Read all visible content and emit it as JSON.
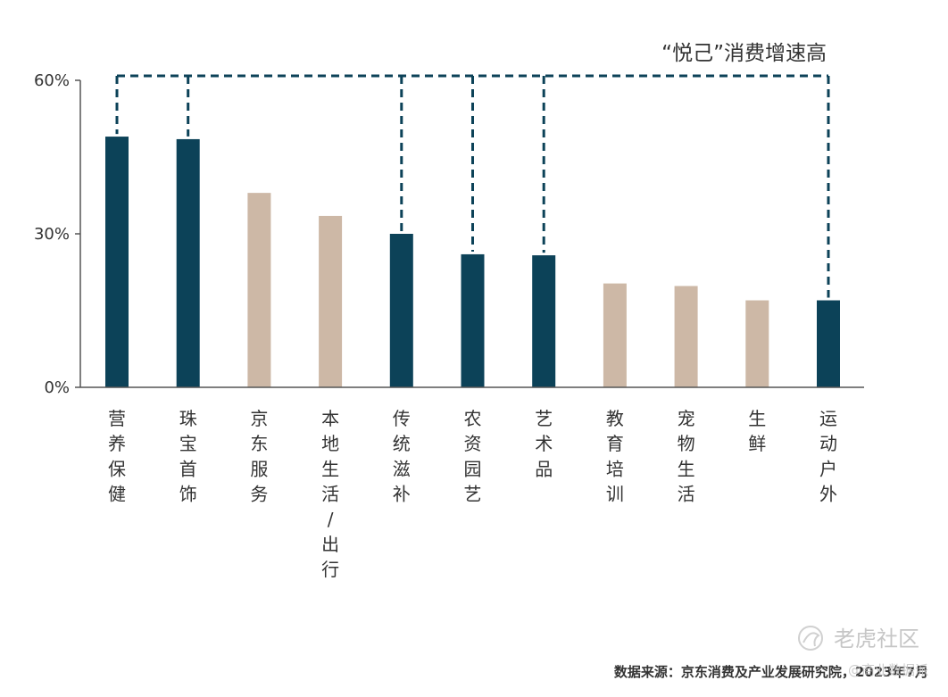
{
  "chart_data": {
    "type": "bar",
    "categories": [
      "营养保健",
      "珠宝首饰",
      "京东服务",
      "本地生活/出行",
      "传统滋补",
      "农资园艺",
      "艺术品",
      "教育培训",
      "宠物生活",
      "生鲜",
      "运动户外"
    ],
    "values": [
      49,
      48.5,
      38,
      33.5,
      30,
      26,
      25.8,
      20.3,
      19.8,
      17,
      17
    ],
    "highlighted": [
      true,
      true,
      false,
      false,
      true,
      true,
      true,
      false,
      false,
      false,
      true
    ],
    "yticks": [
      "0%",
      "30%",
      "60%"
    ],
    "ylim": [
      0,
      60
    ],
    "grid": false,
    "annotation": "“悦己”消费增速高"
  },
  "colors": {
    "highlight": "#0c4258",
    "muted": "#cdb8a6",
    "dashed": "#0c4258",
    "axis": "#555555"
  },
  "footer": {
    "source": "数据来源：京东消费及产业发展研究院，2023年7月"
  },
  "watermark": {
    "text": "老虎社区",
    "sub": "@商业数据派",
    "icon": "tiger-community-logo-icon"
  }
}
